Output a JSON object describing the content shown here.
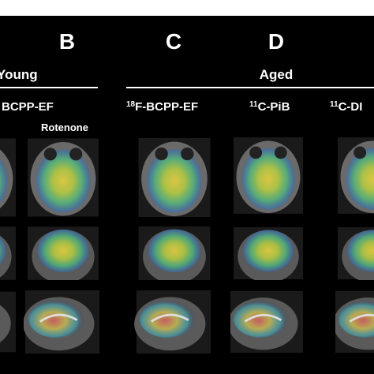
{
  "panels": [
    {
      "label": "B"
    },
    {
      "label": "C"
    },
    {
      "label": "D"
    }
  ],
  "groups": {
    "young": "Young",
    "aged": "Aged"
  },
  "column_headers": [
    {
      "text": "BCPP-EF"
    },
    {
      "sup": "18",
      "text": "F-BCPP-EF"
    },
    {
      "sup": "11",
      "text": "C-PiB"
    },
    {
      "sup": "11",
      "text": "C-DI"
    }
  ],
  "condition_label": "Rotenone"
}
